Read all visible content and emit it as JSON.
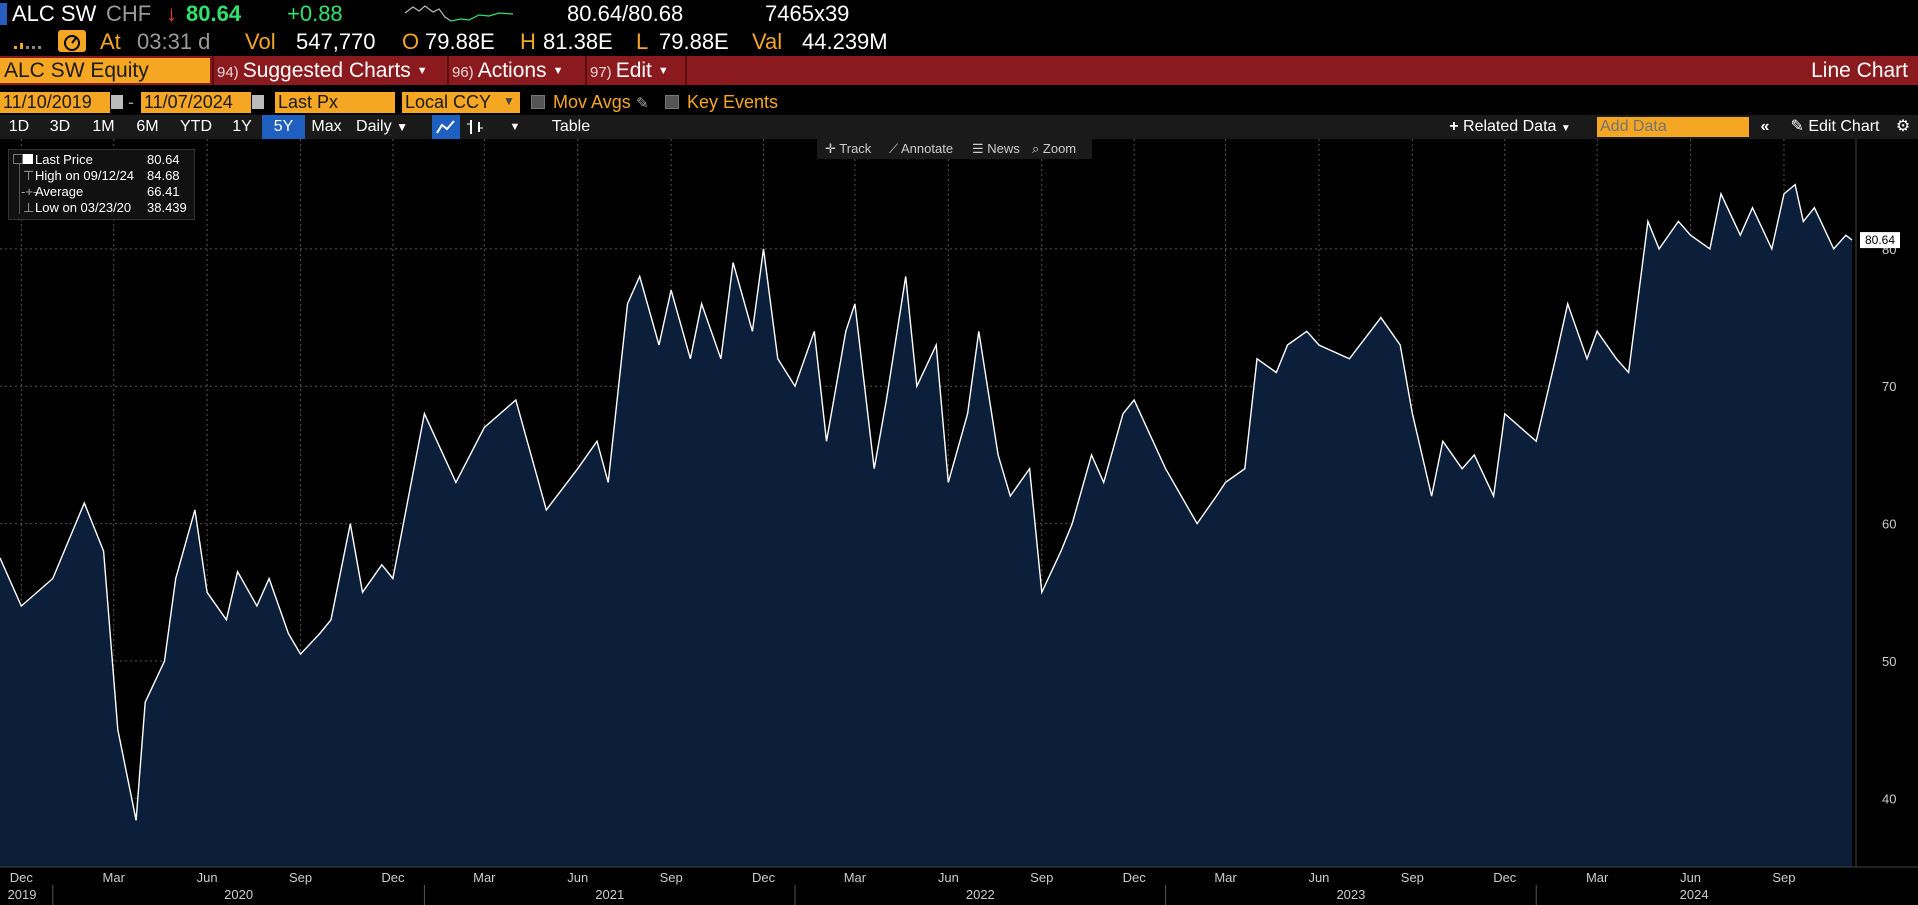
{
  "quote": {
    "ticker": "ALC SW",
    "currency": "CHF",
    "arrow": "↓",
    "price": "80.64",
    "change": "+0.88",
    "bid_ask": "80.64/80.68",
    "size": "7465x39",
    "at_label": "At",
    "time": "03:31 d",
    "vol_label": "Vol",
    "vol": "547,770",
    "open_label": "O",
    "open": "79.88E",
    "high_label": "H",
    "high": "81.38E",
    "low_label": "L",
    "low": "79.88E",
    "val_label": "Val",
    "val": "44.239M"
  },
  "menu": {
    "security": "ALC SW Equity",
    "suggested_num": "94)",
    "suggested": "Suggested Charts",
    "actions_num": "96)",
    "actions": "Actions",
    "edit_num": "97)",
    "edit": "Edit",
    "chart_type": "Line Chart"
  },
  "controls": {
    "start_date": "11/10/2019",
    "dash": "-",
    "end_date": "11/07/2024",
    "field": "Last Px",
    "currency": "Local CCY",
    "mov_avgs": "Mov Avgs",
    "key_events": "Key Events"
  },
  "toolbar": {
    "periods": [
      "1D",
      "3D",
      "1M",
      "6M",
      "YTD",
      "1Y",
      "5Y",
      "Max"
    ],
    "selected_period": "5Y",
    "frequency": "Daily",
    "table": "Table",
    "related_data": "Related Data",
    "add_data_placeholder": "Add Data",
    "edit_chart": "Edit Chart"
  },
  "chart_tools": {
    "track": "Track",
    "annotate": "Annotate",
    "news": "News",
    "zoom": "Zoom"
  },
  "legend": {
    "rows": [
      {
        "name": "Last Price",
        "value": "80.64"
      },
      {
        "name": "High on 09/12/24",
        "value": "84.68"
      },
      {
        "name": "Average",
        "value": "66.41"
      },
      {
        "name": "Low on 03/23/20",
        "value": "38.439"
      }
    ]
  },
  "colors": {
    "amber": "#f5a623",
    "menu_bar": "#8b1a1f",
    "area_fill": "#0b1f3a",
    "line": "#ffffff",
    "selected_tab": "#1f5fbf"
  },
  "chart_data": {
    "type": "area",
    "ylim": [
      35,
      88
    ],
    "yticks": [
      40,
      50,
      60,
      70,
      80
    ],
    "last_value_label": "80.64",
    "grid": true,
    "legend_position": "top-left",
    "x_month_labels": [
      "Dec",
      "Mar",
      "Jun",
      "Sep",
      "Dec",
      "Mar",
      "Jun",
      "Sep",
      "Dec",
      "Mar",
      "Jun",
      "Sep",
      "Dec",
      "Mar",
      "Jun",
      "Sep",
      "Dec",
      "Mar",
      "Jun",
      "Sep"
    ],
    "x_year_labels": [
      "2019",
      "2020",
      "2021",
      "2022",
      "2023",
      "2024"
    ],
    "series": [
      {
        "x": [
          "2019-11-10",
          "2019-12-01",
          "2020-01-01",
          "2020-02-01",
          "2020-02-20",
          "2020-03-05",
          "2020-03-23",
          "2020-04-01",
          "2020-04-20",
          "2020-05-01",
          "2020-05-20",
          "2020-06-01",
          "2020-06-20",
          "2020-07-01",
          "2020-07-20",
          "2020-08-01",
          "2020-08-20",
          "2020-09-01",
          "2020-09-20",
          "2020-10-01",
          "2020-10-20",
          "2020-11-01",
          "2020-11-20",
          "2020-12-01",
          "2021-01-01",
          "2021-02-01",
          "2021-03-01",
          "2021-04-01",
          "2021-05-01",
          "2021-06-01",
          "2021-06-20",
          "2021-07-01",
          "2021-07-20",
          "2021-08-01",
          "2021-08-20",
          "2021-09-01",
          "2021-09-20",
          "2021-10-01",
          "2021-10-20",
          "2021-11-01",
          "2021-11-20",
          "2021-12-01",
          "2021-12-15",
          "2022-01-01",
          "2022-01-20",
          "2022-02-01",
          "2022-02-20",
          "2022-03-01",
          "2022-03-20",
          "2022-04-01",
          "2022-04-20",
          "2022-05-01",
          "2022-05-20",
          "2022-06-01",
          "2022-06-20",
          "2022-07-01",
          "2022-07-20",
          "2022-08-01",
          "2022-08-20",
          "2022-09-01",
          "2022-09-20",
          "2022-10-01",
          "2022-10-20",
          "2022-11-01",
          "2022-11-20",
          "2022-12-01",
          "2023-01-01",
          "2023-02-01",
          "2023-02-20",
          "2023-03-01",
          "2023-03-20",
          "2023-04-01",
          "2023-04-20",
          "2023-05-01",
          "2023-05-20",
          "2023-06-01",
          "2023-07-01",
          "2023-08-01",
          "2023-08-20",
          "2023-09-01",
          "2023-09-20",
          "2023-10-01",
          "2023-10-20",
          "2023-11-01",
          "2023-11-20",
          "2023-12-01",
          "2024-01-01",
          "2024-01-20",
          "2024-02-01",
          "2024-02-20",
          "2024-03-01",
          "2024-03-20",
          "2024-04-01",
          "2024-04-20",
          "2024-05-01",
          "2024-05-20",
          "2024-06-01",
          "2024-06-20",
          "2024-07-01",
          "2024-07-20",
          "2024-08-01",
          "2024-08-20",
          "2024-09-01",
          "2024-09-12",
          "2024-09-20",
          "2024-10-01",
          "2024-10-20",
          "2024-11-01",
          "2024-11-07"
        ],
        "values": [
          57.5,
          54,
          56,
          61.5,
          58,
          45,
          38.4,
          47,
          50,
          56,
          61,
          55,
          53,
          56.5,
          54,
          56,
          52,
          50.5,
          52,
          53,
          60,
          55,
          57,
          56,
          68,
          63,
          67,
          69,
          61,
          64,
          66,
          63,
          76,
          78,
          73,
          77,
          72,
          76,
          72,
          79,
          74,
          80,
          72,
          70,
          74,
          66,
          74,
          76,
          64,
          69,
          78,
          70,
          73,
          63,
          68,
          74,
          65,
          62,
          64,
          55,
          58,
          60,
          65,
          63,
          68,
          69,
          64,
          60,
          62,
          63,
          64,
          72,
          71,
          73,
          74,
          73,
          72,
          75,
          73,
          68,
          62,
          66,
          64,
          65,
          62,
          68,
          66,
          72,
          76,
          72,
          74,
          72,
          71,
          82,
          80,
          82,
          81,
          80,
          84,
          81,
          83,
          80,
          84,
          84.68,
          82,
          83,
          80,
          81,
          80.64
        ]
      }
    ]
  }
}
